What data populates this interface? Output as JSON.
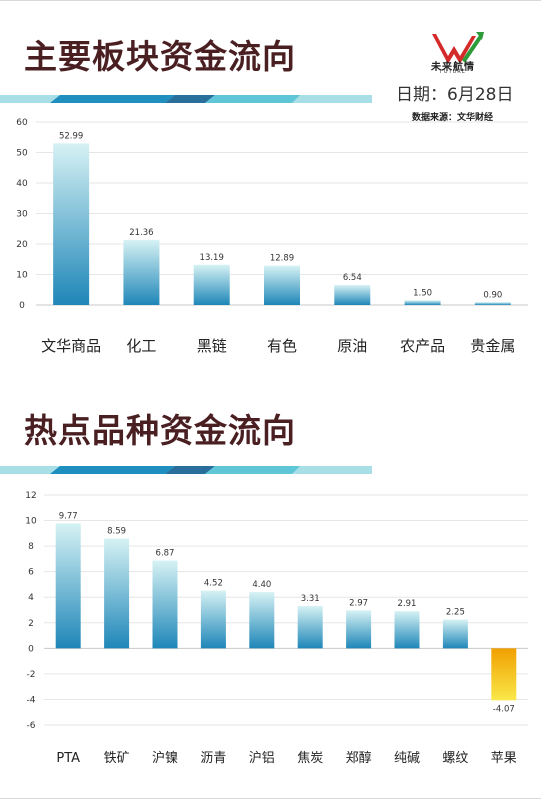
{
  "header": {
    "title1": "主要板块资金流向",
    "title2": "热点品种资金流向",
    "date": "日期：6月28日",
    "source": "数据来源：文华财经",
    "logo_cn": "未来航情",
    "logo_en": "FUTURE"
  },
  "colors": {
    "positive_top": "#d6f2f4",
    "positive_bottom": "#1e86b8",
    "negative_top": "#f0a000",
    "negative_bottom": "#fae84a",
    "title": "#4a1f22"
  },
  "chart_data": [
    {
      "type": "bar",
      "title": "主要板块资金流向",
      "categories": [
        "文华商品",
        "化工",
        "黑链",
        "有色",
        "原油",
        "农产品",
        "贵金属"
      ],
      "values": [
        52.99,
        21.36,
        13.19,
        12.89,
        6.54,
        1.5,
        0.9
      ],
      "value_labels": [
        "52.99",
        "21.36",
        "13.19",
        "12.89",
        "6.54",
        "1.50",
        "0.90"
      ],
      "ylim": [
        0,
        60
      ],
      "yticks": [
        0,
        10,
        20,
        30,
        40,
        50,
        60
      ],
      "grid": true
    },
    {
      "type": "bar",
      "title": "热点品种资金流向",
      "categories": [
        "PTA",
        "铁矿",
        "沪镍",
        "沥青",
        "沪铝",
        "焦炭",
        "郑醇",
        "纯碱",
        "螺纹",
        "苹果"
      ],
      "values": [
        9.77,
        8.59,
        6.87,
        4.52,
        4.4,
        3.31,
        2.97,
        2.91,
        2.25,
        -4.07
      ],
      "value_labels": [
        "9.77",
        "8.59",
        "6.87",
        "4.52",
        "4.40",
        "3.31",
        "2.97",
        "2.91",
        "2.25",
        "-4.07"
      ],
      "ylim": [
        -6,
        12
      ],
      "yticks": [
        -6,
        -4,
        -2,
        0,
        2,
        4,
        6,
        8,
        10,
        12
      ],
      "grid": true
    }
  ]
}
